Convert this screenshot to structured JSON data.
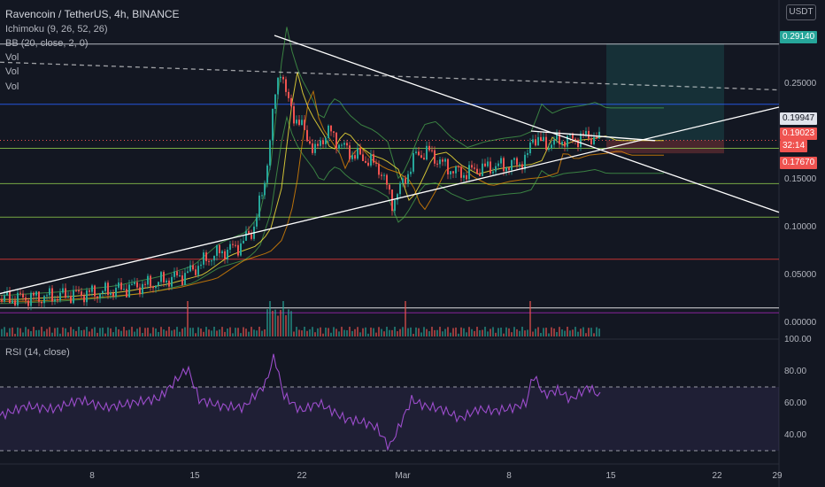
{
  "header": {
    "title": "Ravencoin / TetherUS, 4h, BINANCE",
    "currency": "USDT",
    "indicators": [
      "Ichimoku (9, 26, 52, 26)",
      "BB (20, close, 2, 0)",
      "Vol",
      "Vol",
      "Vol"
    ],
    "rsi_label": "RSI (14, close)"
  },
  "price_tags": {
    "target": "0.29140",
    "upper": "0.19947",
    "current": "0.19023",
    "countdown": "32:14",
    "stop": "0.17670"
  },
  "colors": {
    "background": "#131722",
    "up": "#26a69a",
    "down": "#ef5350",
    "rsi": "#9c4dcc",
    "target_tag": "#26a69a",
    "stop_tag": "#ef5350",
    "trendline": "#ffffff",
    "support_line": "#8bc34a",
    "resistance_line": "#e53935",
    "blue_line": "#2962ff",
    "purple_line": "#9c27b0"
  },
  "chart_data": [
    {
      "type": "candlestick",
      "title": "Ravencoin / TetherUS, 4h, BINANCE",
      "x_ticks": [
        "8",
        "15",
        "22",
        "Mar",
        "8",
        "15",
        "22",
        "29"
      ],
      "y_ticks": [
        "0.30000",
        "0.25000",
        "0.20000",
        "0.15000",
        "0.10000",
        "0.05000",
        "0.00000"
      ],
      "ylim": [
        -0.02,
        0.3
      ],
      "path_points": [
        [
          0,
          0.024
        ],
        [
          60,
          0.027
        ],
        [
          120,
          0.032
        ],
        [
          170,
          0.04
        ],
        [
          210,
          0.05
        ],
        [
          240,
          0.07
        ],
        [
          270,
          0.08
        ],
        [
          285,
          0.095
        ],
        [
          298,
          0.14
        ],
        [
          306,
          0.2
        ],
        [
          312,
          0.245
        ],
        [
          318,
          0.27
        ],
        [
          322,
          0.24
        ],
        [
          330,
          0.22
        ],
        [
          340,
          0.205
        ],
        [
          350,
          0.19
        ],
        [
          355,
          0.175
        ],
        [
          362,
          0.19
        ],
        [
          372,
          0.2
        ],
        [
          385,
          0.185
        ],
        [
          400,
          0.175
        ],
        [
          415,
          0.17
        ],
        [
          430,
          0.16
        ],
        [
          443,
          0.125
        ],
        [
          455,
          0.145
        ],
        [
          470,
          0.175
        ],
        [
          485,
          0.178
        ],
        [
          500,
          0.165
        ],
        [
          520,
          0.155
        ],
        [
          540,
          0.16
        ],
        [
          560,
          0.163
        ],
        [
          580,
          0.165
        ],
        [
          595,
          0.17
        ],
        [
          602,
          0.195
        ],
        [
          615,
          0.185
        ],
        [
          630,
          0.19
        ],
        [
          650,
          0.192
        ],
        [
          665,
          0.195
        ],
        [
          677,
          0.19
        ]
      ],
      "levels": [
        0.291,
        0.228,
        0.182,
        0.145,
        0.11,
        0.066,
        0.015,
        0.01
      ],
      "trendlines": [
        {
          "from": [
            310,
            0.3
          ],
          "to": [
            880,
            0.115
          ]
        },
        {
          "from": [
            0,
            0.03
          ],
          "to": [
            880,
            0.225
          ]
        },
        {
          "from": [
            600,
            0.2
          ],
          "to": [
            740,
            0.19
          ]
        },
        {
          "from": [
            0,
            0.272
          ],
          "to": [
            880,
            0.243
          ]
        }
      ],
      "position": {
        "entry": 0.19023,
        "target": 0.2914,
        "stop": 0.1767
      }
    },
    {
      "type": "line",
      "title": "RSI (14, close)",
      "y_ticks": [
        "100.00",
        "80.00",
        "60.00",
        "40.00"
      ],
      "ylim": [
        20,
        100
      ],
      "bands": [
        70,
        30
      ],
      "path_points": [
        [
          0,
          52
        ],
        [
          30,
          58
        ],
        [
          60,
          56
        ],
        [
          90,
          62
        ],
        [
          120,
          57
        ],
        [
          150,
          60
        ],
        [
          180,
          63
        ],
        [
          212,
          82
        ],
        [
          225,
          62
        ],
        [
          250,
          58
        ],
        [
          275,
          57
        ],
        [
          300,
          72
        ],
        [
          310,
          90
        ],
        [
          320,
          65
        ],
        [
          340,
          55
        ],
        [
          360,
          60
        ],
        [
          390,
          50
        ],
        [
          410,
          48
        ],
        [
          425,
          45
        ],
        [
          440,
          32
        ],
        [
          455,
          50
        ],
        [
          465,
          62
        ],
        [
          480,
          58
        ],
        [
          500,
          56
        ],
        [
          520,
          50
        ],
        [
          540,
          56
        ],
        [
          560,
          55
        ],
        [
          580,
          57
        ],
        [
          595,
          60
        ],
        [
          602,
          78
        ],
        [
          615,
          65
        ],
        [
          630,
          68
        ],
        [
          645,
          62
        ],
        [
          655,
          66
        ],
        [
          665,
          70
        ],
        [
          678,
          64
        ]
      ]
    }
  ]
}
